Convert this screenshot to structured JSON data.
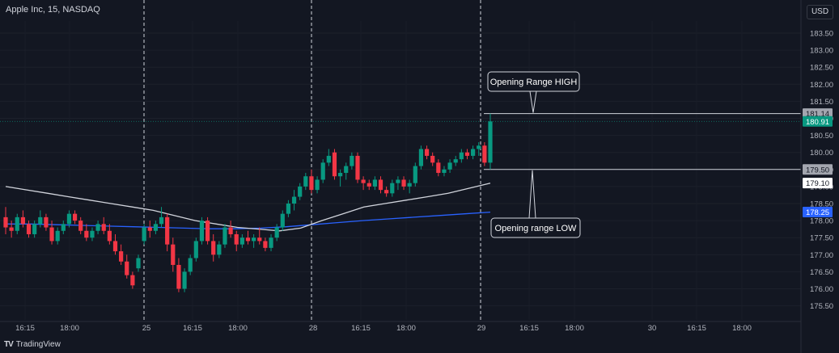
{
  "header": {
    "symbol_title": "Apple Inc, 15, NASDAQ",
    "currency_label": "USD"
  },
  "footer": {
    "logo_text": "TV",
    "brand": "TradingView"
  },
  "colors": {
    "up": "#089981",
    "down": "#f23645",
    "ema_fast": "#d1d4dc",
    "ema_slow": "#2962ff",
    "background": "#131722"
  },
  "chart_data": {
    "type": "candlestick",
    "timeframe": "15",
    "x_tick_labels": [
      "16:15",
      "18:00",
      "25",
      "16:15",
      "18:00",
      "28",
      "16:15",
      "18:00",
      "29",
      "16:15",
      "18:00",
      "30",
      "16:15",
      "18:00"
    ],
    "session_breaks": [
      "25",
      "28",
      "29"
    ],
    "y_tick_labels": [
      "183.50",
      "183.00",
      "182.50",
      "182.00",
      "181.50",
      "181.00",
      "180.50",
      "180.00",
      "179.50",
      "179.00",
      "178.50",
      "178.00",
      "177.50",
      "177.00",
      "176.50",
      "176.00",
      "175.50"
    ],
    "ylim": [
      175.2,
      184.0
    ],
    "candles": [
      [
        178.1,
        178.4,
        177.6,
        177.8
      ],
      [
        177.8,
        178.0,
        177.5,
        177.7
      ],
      [
        177.7,
        178.2,
        177.6,
        178.1
      ],
      [
        178.1,
        178.3,
        177.8,
        177.9
      ],
      [
        177.9,
        178.0,
        177.5,
        177.6
      ],
      [
        177.6,
        178.0,
        177.5,
        177.9
      ],
      [
        177.9,
        178.3,
        177.8,
        178.1
      ],
      [
        178.1,
        178.2,
        177.7,
        177.8
      ],
      [
        177.8,
        178.0,
        177.3,
        177.4
      ],
      [
        177.4,
        177.8,
        177.3,
        177.7
      ],
      [
        177.7,
        178.0,
        177.6,
        177.9
      ],
      [
        177.9,
        178.3,
        177.8,
        178.2
      ],
      [
        178.2,
        178.3,
        177.9,
        178.0
      ],
      [
        178.0,
        178.1,
        177.6,
        177.7
      ],
      [
        177.7,
        177.9,
        177.4,
        177.5
      ],
      [
        177.5,
        177.8,
        177.4,
        177.7
      ],
      [
        177.7,
        178.0,
        177.6,
        177.9
      ],
      [
        177.9,
        178.1,
        177.6,
        177.7
      ],
      [
        177.7,
        177.9,
        177.3,
        177.4
      ],
      [
        177.4,
        177.6,
        177.0,
        177.1
      ],
      [
        177.1,
        177.3,
        176.7,
        176.8
      ],
      [
        176.8,
        177.0,
        176.3,
        176.4
      ],
      [
        176.4,
        176.5,
        176.0,
        176.1
      ],
      [
        176.6,
        177.0,
        176.5,
        176.9
      ],
      [
        177.4,
        177.9,
        177.3,
        177.8
      ],
      [
        177.8,
        178.0,
        177.5,
        177.7
      ],
      [
        177.7,
        178.0,
        177.6,
        177.9
      ],
      [
        177.9,
        178.4,
        177.8,
        178.1
      ],
      [
        178.1,
        178.2,
        177.1,
        177.3
      ],
      [
        177.3,
        177.5,
        176.5,
        176.7
      ],
      [
        176.7,
        176.9,
        175.9,
        176.0
      ],
      [
        176.0,
        176.6,
        175.9,
        176.5
      ],
      [
        176.5,
        177.0,
        176.4,
        176.9
      ],
      [
        176.9,
        177.5,
        176.8,
        177.4
      ],
      [
        177.4,
        178.1,
        177.3,
        178.0
      ],
      [
        178.0,
        178.1,
        177.3,
        177.4
      ],
      [
        177.4,
        177.6,
        176.8,
        177.0
      ],
      [
        177.0,
        177.4,
        176.9,
        177.3
      ],
      [
        177.3,
        177.9,
        177.2,
        177.8
      ],
      [
        177.8,
        178.0,
        177.5,
        177.6
      ],
      [
        177.6,
        177.7,
        177.1,
        177.3
      ],
      [
        177.3,
        177.6,
        177.2,
        177.5
      ],
      [
        177.5,
        177.7,
        177.3,
        177.4
      ],
      [
        177.4,
        177.6,
        177.2,
        177.5
      ],
      [
        177.5,
        177.8,
        177.3,
        177.4
      ],
      [
        177.4,
        177.5,
        177.1,
        177.2
      ],
      [
        177.2,
        177.6,
        177.1,
        177.5
      ],
      [
        177.5,
        177.9,
        177.4,
        177.8
      ],
      [
        177.8,
        178.3,
        177.7,
        178.2
      ],
      [
        178.2,
        178.6,
        178.1,
        178.5
      ],
      [
        178.5,
        178.9,
        178.3,
        178.7
      ],
      [
        178.7,
        179.1,
        178.6,
        179.0
      ],
      [
        179.0,
        179.4,
        178.9,
        179.3
      ],
      [
        179.3,
        179.5,
        178.8,
        178.9
      ],
      [
        178.9,
        179.3,
        178.8,
        179.2
      ],
      [
        179.2,
        179.8,
        179.1,
        179.7
      ],
      [
        179.7,
        180.1,
        179.6,
        179.9
      ],
      [
        180.0,
        180.1,
        179.2,
        179.3
      ],
      [
        179.3,
        179.5,
        179.0,
        179.4
      ],
      [
        179.4,
        179.7,
        179.2,
        179.6
      ],
      [
        179.6,
        180.0,
        179.5,
        179.9
      ],
      [
        179.9,
        180.0,
        179.1,
        179.2
      ],
      [
        179.2,
        179.3,
        178.9,
        179.1
      ],
      [
        179.1,
        179.2,
        178.9,
        179.0
      ],
      [
        179.0,
        179.3,
        178.9,
        179.2
      ],
      [
        179.2,
        179.3,
        178.8,
        178.9
      ],
      [
        178.9,
        179.0,
        178.7,
        178.8
      ],
      [
        178.8,
        179.2,
        178.7,
        179.1
      ],
      [
        179.1,
        179.3,
        178.9,
        179.2
      ],
      [
        179.2,
        179.3,
        178.9,
        179.0
      ],
      [
        179.0,
        179.2,
        178.8,
        179.1
      ],
      [
        179.1,
        179.7,
        179.0,
        179.6
      ],
      [
        179.6,
        180.2,
        179.5,
        180.1
      ],
      [
        180.1,
        180.2,
        179.8,
        179.9
      ],
      [
        179.9,
        180.0,
        179.6,
        179.7
      ],
      [
        179.7,
        179.8,
        179.3,
        179.4
      ],
      [
        179.4,
        179.6,
        179.3,
        179.5
      ],
      [
        179.5,
        179.8,
        179.4,
        179.7
      ],
      [
        179.7,
        179.9,
        179.6,
        179.8
      ],
      [
        179.8,
        180.1,
        179.7,
        180.0
      ],
      [
        180.0,
        180.1,
        179.8,
        179.9
      ],
      [
        179.9,
        180.2,
        179.8,
        180.1
      ],
      [
        180.1,
        180.3,
        179.9,
        180.2
      ],
      [
        180.2,
        180.3,
        179.6,
        179.7
      ],
      [
        179.7,
        181.14,
        179.5,
        180.91
      ]
    ],
    "ema_fast": [
      179.0,
      178.9,
      178.8,
      178.7,
      178.6,
      178.5,
      178.4,
      178.3,
      178.15,
      178.0,
      177.9,
      177.8,
      177.75,
      177.7,
      177.78,
      178.0,
      178.2,
      178.4,
      178.5,
      178.6,
      178.7,
      178.8,
      178.95,
      179.1
    ],
    "ema_slow": [
      177.9,
      177.9,
      177.88,
      177.86,
      177.84,
      177.82,
      177.8,
      177.78,
      177.76,
      177.76,
      177.78,
      177.82,
      177.88,
      177.94,
      178.0,
      178.05,
      178.1,
      178.15,
      178.2,
      178.25
    ],
    "horizontal_levels": [
      {
        "label": "Opening Range HIGH",
        "value": 181.14
      },
      {
        "label": "Opening range LOW",
        "value": 179.5
      }
    ],
    "price_labels": [
      {
        "text": "181.14",
        "style": "gray"
      },
      {
        "text": "180.91",
        "style": "green"
      },
      {
        "text": "179.50",
        "style": "gray"
      },
      {
        "text": "179.10",
        "style": "white"
      },
      {
        "text": "178.25",
        "style": "blue"
      }
    ],
    "annotations": [
      "Opening Range HIGH",
      "Opening range LOW"
    ]
  }
}
